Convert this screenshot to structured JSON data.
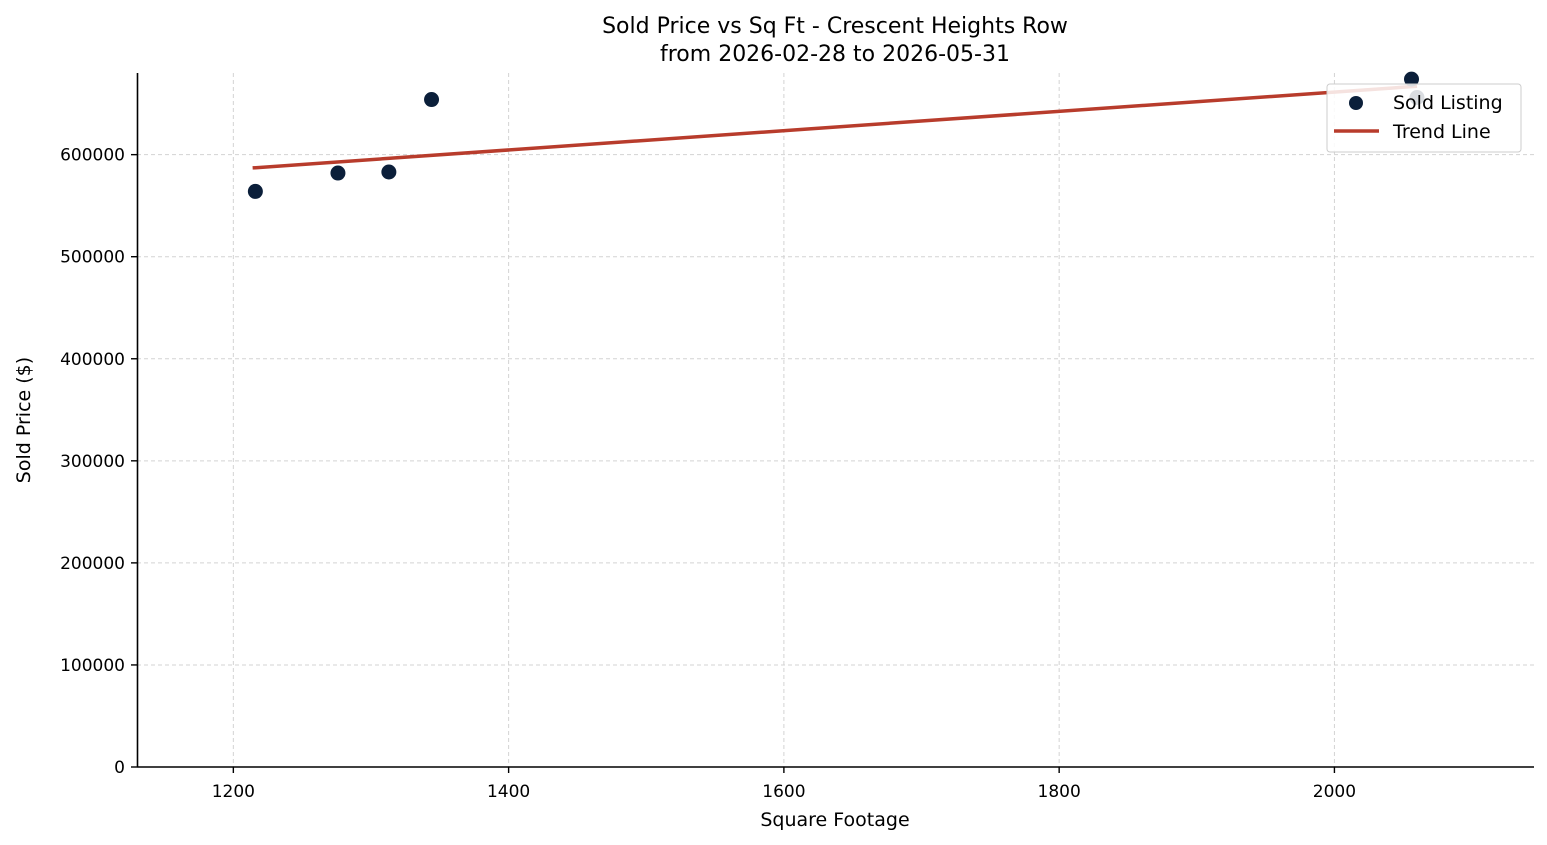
{
  "chart_data": {
    "type": "scatter",
    "title": "Sold Price vs Sq Ft - Crescent Heights Row",
    "subtitle": "from 2026-02-28 to 2026-05-31",
    "xlabel": "Square Footage",
    "ylabel": "Sold Price ($)",
    "xlim": [
      1130,
      2145
    ],
    "ylim": [
      0,
      680000
    ],
    "xticks": [
      1200,
      1400,
      1600,
      1800,
      2000
    ],
    "yticks": [
      0,
      100000,
      200000,
      300000,
      400000,
      500000,
      600000
    ],
    "grid": true,
    "legend_position": "top-right",
    "series": [
      {
        "name": "Sold Listing",
        "kind": "scatter",
        "color": "#0b1f3a",
        "x": [
          1216,
          1276,
          1313,
          1344,
          2056,
          2060
        ],
        "y": [
          564000,
          582000,
          583000,
          654000,
          674000,
          656000
        ]
      },
      {
        "name": "Trend Line",
        "kind": "line",
        "color": "#b83c2c",
        "x": [
          1214,
          2060
        ],
        "y": [
          587000,
          667000
        ]
      }
    ]
  }
}
